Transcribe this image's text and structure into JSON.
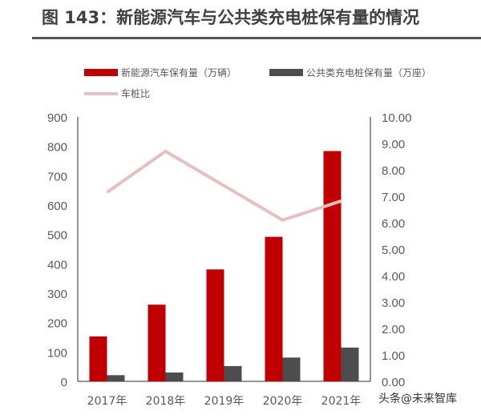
{
  "title": "图 143：新能源汽车与公共类充电桩保有量的情况",
  "watermark": "头条@未来智库",
  "chart_data": {
    "type": "bar",
    "title": "图 143：新能源汽车与公共类充电桩保有量的情况",
    "categories": [
      "2017年",
      "2018年",
      "2019年",
      "2020年",
      "2021年"
    ],
    "series": [
      {
        "name": "新能源汽车保有量（万辆）",
        "type": "bar",
        "axis": "left",
        "color": "#C00000",
        "values": [
          153,
          261,
          381,
          492,
          784
        ]
      },
      {
        "name": "公共类充电桩保有量（万座）",
        "type": "bar",
        "axis": "left",
        "color": "#4D4D4F",
        "values": [
          21,
          30,
          52,
          81,
          115
        ]
      },
      {
        "name": "车桩比",
        "type": "line",
        "axis": "right",
        "color": "#E8BFC0",
        "values": [
          7.15,
          8.7,
          7.4,
          6.1,
          6.82
        ]
      }
    ],
    "ylim": [
      0,
      900
    ],
    "y_ticks": [
      "0",
      "100",
      "200",
      "300",
      "400",
      "500",
      "600",
      "700",
      "800",
      "900"
    ],
    "y2lim": [
      0,
      10
    ],
    "y2_ticks": [
      "0.00",
      "1.00",
      "2.00",
      "3.00",
      "4.00",
      "5.00",
      "6.00",
      "7.00",
      "8.00",
      "9.00",
      "10.00"
    ],
    "grid": false,
    "legend_position": "top"
  }
}
